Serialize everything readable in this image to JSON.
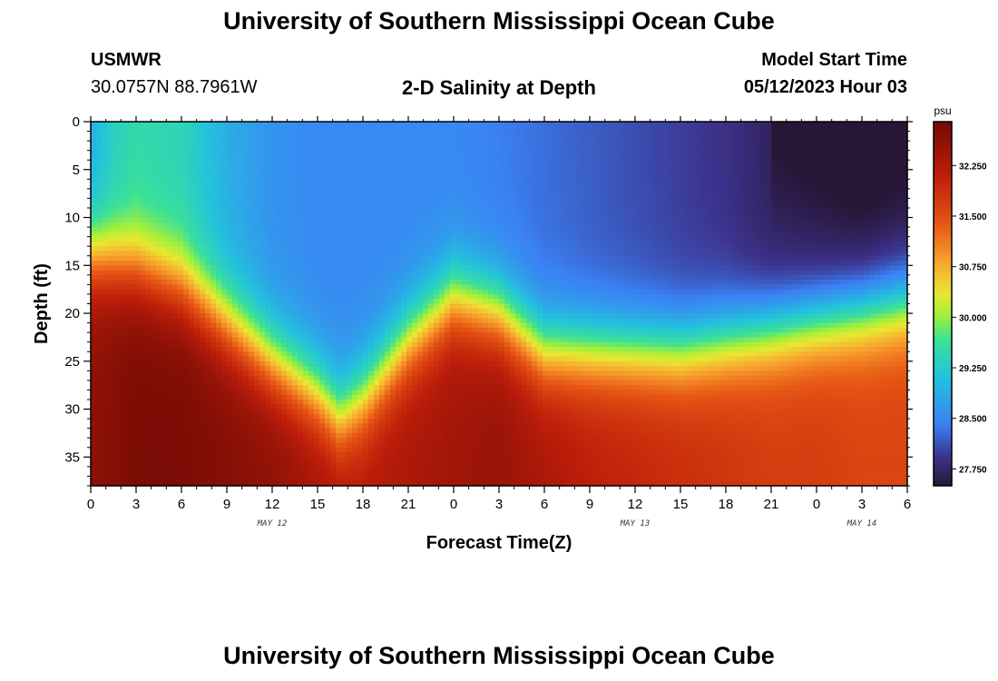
{
  "header": {
    "title": "University of Southern Mississippi Ocean Cube",
    "station": "USMWR",
    "coords": "30.0757N  88.7961W",
    "subtitle": "2-D Salinity at Depth",
    "model_label": "Model Start Time",
    "model_date": "05/12/2023 Hour 03"
  },
  "footer": {
    "title": "University of Southern Mississippi Ocean Cube"
  },
  "chart_data": {
    "type": "heatmap",
    "title": "2-D Salinity at Depth",
    "xlabel": "Forecast Time(Z)",
    "ylabel": "Depth (ft)",
    "x_unit": "forecast hour from 05/12 00Z",
    "xlim": [
      0,
      54
    ],
    "ylim": [
      0,
      38
    ],
    "y_inverted": true,
    "x_tick_values": [
      0,
      3,
      6,
      9,
      12,
      15,
      18,
      21,
      24,
      27,
      30,
      33,
      36,
      39,
      42,
      45,
      48,
      51,
      54
    ],
    "x_tick_labels": [
      "0",
      "3",
      "6",
      "9",
      "12",
      "15",
      "18",
      "21",
      "0",
      "3",
      "6",
      "9",
      "12",
      "15",
      "18",
      "21",
      "0",
      "3",
      "6"
    ],
    "date_labels": [
      {
        "x": 12,
        "label": "MAY 12"
      },
      {
        "x": 36,
        "label": "MAY 13"
      },
      {
        "x": 51,
        "label": "MAY 14"
      }
    ],
    "y_tick_values": [
      0,
      5,
      10,
      15,
      20,
      25,
      30,
      35
    ],
    "y_tick_labels": [
      "0",
      "5",
      "10",
      "15",
      "20",
      "25",
      "30",
      "35"
    ],
    "colorbar": {
      "unit": "psu",
      "min": 27.5,
      "max": 32.9,
      "tick_values": [
        27.75,
        28.5,
        29.25,
        30.0,
        30.75,
        31.5,
        32.25
      ],
      "tick_labels": [
        "27.750",
        "28.500",
        "29.250",
        "30.000",
        "30.750",
        "31.500",
        "32.250"
      ]
    },
    "halocline_depth": {
      "x": [
        0,
        3,
        6,
        9,
        12,
        15,
        16.5,
        18,
        21,
        24,
        27,
        30,
        33,
        36,
        39,
        42,
        45,
        48,
        51,
        54
      ],
      "depth": [
        14,
        15,
        17,
        21,
        25,
        28.5,
        31,
        29,
        23,
        18.5,
        20,
        24,
        24,
        24,
        24,
        23,
        22,
        21,
        20,
        19
      ]
    },
    "surface_salinity": {
      "x": [
        0,
        1.5,
        3,
        6,
        9,
        12,
        15,
        18,
        21,
        24,
        27,
        30,
        33,
        36,
        39,
        42,
        45,
        48,
        51,
        54
      ],
      "value": [
        28.9,
        29.3,
        29.5,
        29.4,
        28.9,
        28.6,
        28.5,
        28.5,
        28.5,
        28.5,
        28.4,
        28.3,
        28.2,
        28.1,
        28.0,
        27.9,
        27.7,
        27.6,
        27.5,
        27.6
      ]
    },
    "bottom_salinity": {
      "x": [
        0,
        3,
        6,
        9,
        12,
        15,
        18,
        21,
        24,
        27,
        30,
        33,
        36,
        39,
        42,
        45,
        48,
        51,
        54
      ],
      "value": [
        32.6,
        32.8,
        32.8,
        32.7,
        32.6,
        32.4,
        32.2,
        32.3,
        32.4,
        32.5,
        32.3,
        32.1,
        32.0,
        31.9,
        31.8,
        31.7,
        31.7,
        31.6,
        31.6
      ]
    },
    "colors": {
      "low": "#2a1a3a",
      "mid_low": "#3a8ef5",
      "mid": "#a8f03c",
      "mid_high": "#f08030",
      "high": "#7a0a05"
    }
  }
}
